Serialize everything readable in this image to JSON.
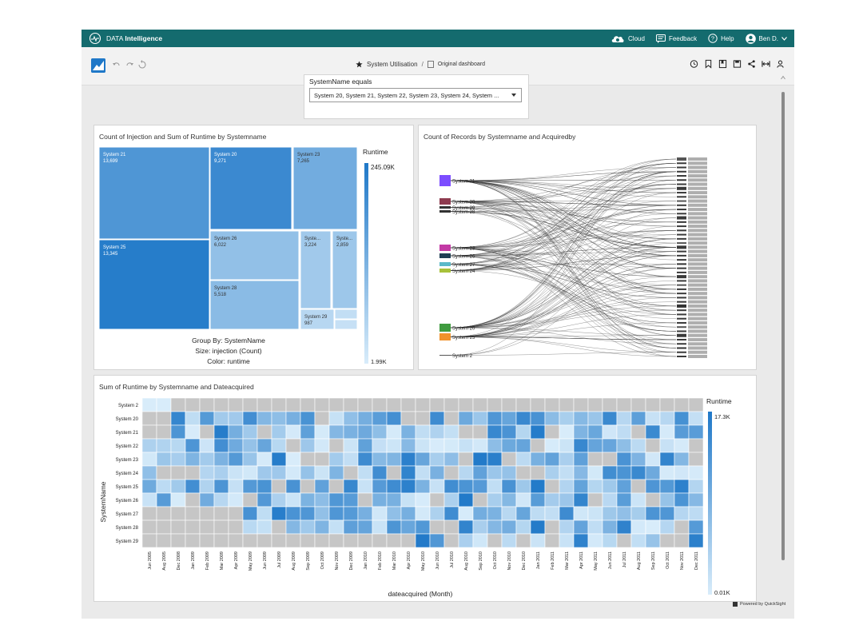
{
  "app": {
    "brand_prefix": "DATA",
    "brand_name": "Intelligence",
    "user": "Ben D."
  },
  "topnav": {
    "cloud": "Cloud",
    "feedback": "Feedback",
    "help": "Help"
  },
  "breadcrumb": {
    "dashboard": "System Utilisation",
    "separator": "/",
    "view": "Original dashboard"
  },
  "filter": {
    "label": "SystemName equals",
    "value": "System 20, System 21, System 22, System 23, System 24, System ..."
  },
  "colors": {
    "header": "#146b6e",
    "accent": "#1f78c8",
    "low": "#d8ecfa",
    "high": "#1f78c8",
    "null_cell": "#c6c6c6"
  },
  "treemap": {
    "title": "Count of Injection and Sum of Runtime by Systemname",
    "tiles": [
      {
        "name": "System 21",
        "value": "13,699",
        "runtime": 0.74
      },
      {
        "name": "System 25",
        "value": "13,345",
        "runtime": 0.96
      },
      {
        "name": "System 20",
        "value": "9,271",
        "runtime": 0.85
      },
      {
        "name": "System 23",
        "value": "7,265",
        "runtime": 0.55
      },
      {
        "name": "System 26",
        "value": "6,022",
        "runtime": 0.38
      },
      {
        "name": "System 28",
        "value": "5,518",
        "runtime": 0.42
      },
      {
        "name": "Syste...",
        "value": "3,224",
        "runtime": 0.3
      },
      {
        "name": "Syste...",
        "value": "2,859",
        "runtime": 0.32
      },
      {
        "name": "System 29",
        "value": "987",
        "runtime": 0.18
      },
      {
        "name": "",
        "value": "",
        "runtime": 0.12
      },
      {
        "name": "",
        "value": "",
        "runtime": 0.1
      }
    ],
    "caption": {
      "group": "Group By: SystemName",
      "size": "Size: injection (Count)",
      "color": "Color: runtime"
    },
    "legend": {
      "title": "Runtime",
      "max": "245.09K",
      "min": "1.99K"
    }
  },
  "sankey": {
    "title": "Count of Records by Systemname and Acquiredby",
    "sources": [
      {
        "name": "System 21",
        "color": "#7c4dff"
      },
      {
        "name": "System 20",
        "color": "#8e3b4f"
      },
      {
        "name": "System 29",
        "color": "#333333"
      },
      {
        "name": "System 28",
        "color": "#333333"
      },
      {
        "name": "System 23",
        "color": "#c33aa5"
      },
      {
        "name": "System 26",
        "color": "#1f3f54"
      },
      {
        "name": "System 27",
        "color": "#5bb9c8"
      },
      {
        "name": "System 24",
        "color": "#a8c13a"
      },
      {
        "name": "System 20",
        "color": "#3f9b3f"
      },
      {
        "name": "System 25",
        "color": "#f0922b"
      },
      {
        "name": "System 2",
        "color": "#555555"
      }
    ],
    "target_count": 48
  },
  "heatmap": {
    "title": "Sum of Runtime by Systemname and Dateacquired",
    "ylabel": "SystemName",
    "xlabel": "dateacquired (Month)",
    "legend": {
      "title": "Runtime",
      "max": "17.3K",
      "min": "0.01K"
    },
    "rows": [
      "System 2",
      "System 20",
      "System 21",
      "System 22",
      "System 23",
      "System 24",
      "System 25",
      "System 26",
      "System 27",
      "System 28",
      "System 29"
    ],
    "columns": [
      "Jun 2005",
      "Aug 2005",
      "Dec 2008",
      "Jan 2009",
      "Feb 2009",
      "Mar 2009",
      "Apr 2009",
      "May 2009",
      "Jun 2009",
      "Jul 2009",
      "Aug 2009",
      "Sep 2009",
      "Oct 2009",
      "Nov 2009",
      "Dec 2009",
      "Jan 2010",
      "Feb 2010",
      "Mar 2010",
      "Apr 2010",
      "May 2010",
      "Jun 2010",
      "Jul 2010",
      "Aug 2010",
      "Sep 2010",
      "Oct 2010",
      "Nov 2010",
      "Dec 2010",
      "Jan 2011",
      "Feb 2011",
      "Mar 2011",
      "Apr 2011",
      "May 2011",
      "Jun 2011",
      "Jul 2011",
      "Aug 2011",
      "Sep 2011",
      "Oct 2011",
      "Nov 2011",
      "Dec 2011"
    ]
  },
  "footer": {
    "powered": "Powered by QuickSight"
  }
}
